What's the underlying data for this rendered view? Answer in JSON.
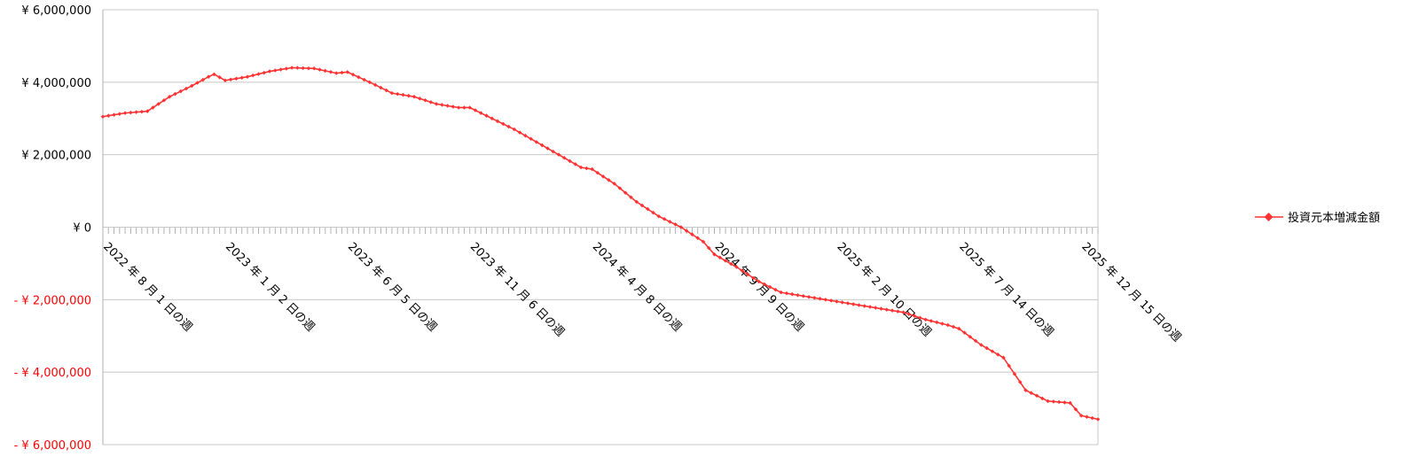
{
  "colors": {
    "series": "#ff3333",
    "negative_label": "#ff0000",
    "positive_label": "#000000",
    "grid": "#c8c8c8",
    "axis": "#b0b0b0"
  },
  "chart_data": {
    "type": "line",
    "title": "",
    "xlabel": "",
    "ylabel": "",
    "ylim": [
      -6000000,
      6000000
    ],
    "yticks": [
      6000000,
      4000000,
      2000000,
      0,
      -2000000,
      -4000000,
      -6000000
    ],
    "ytick_labels": [
      "¥ 6,000,000",
      "¥ 4,000,000",
      "¥ 2,000,000",
      "¥ 0",
      "- ¥ 2,000,000",
      "- ¥ 4,000,000",
      "- ¥ 6,000,000"
    ],
    "xrange": [
      "2022-08-01",
      "2026-01-05"
    ],
    "xtick_dates": [
      "2022-08-01",
      "2023-01-02",
      "2023-06-05",
      "2023-11-06",
      "2024-04-08",
      "2024-09-09",
      "2025-02-10",
      "2025-07-14",
      "2025-12-15"
    ],
    "xtick_labels": [
      "2022 年 8 月 1 日の週",
      "2023 年 1 月 2 日の週",
      "2023 年 6 月 5 日の週",
      "2023 年 11 月 6 日の週",
      "2024 年 4 月 8 日の週",
      "2024 年 9 月 9 日の週",
      "2025 年 2 月 10 日の週",
      "2025 年 7 月 14 日の週",
      "2025 年 12 月 15 日の週"
    ],
    "grid": true,
    "legend": "right",
    "series": [
      {
        "name": "投資元本増減金額",
        "x": [
          "2022-08-01",
          "2022-08-29",
          "2022-09-26",
          "2022-10-24",
          "2022-11-21",
          "2022-12-12",
          "2022-12-19",
          "2023-01-02",
          "2023-01-30",
          "2023-02-27",
          "2023-03-27",
          "2023-04-24",
          "2023-05-22",
          "2023-06-05",
          "2023-07-03",
          "2023-07-31",
          "2023-08-28",
          "2023-09-25",
          "2023-10-23",
          "2023-11-06",
          "2023-12-04",
          "2024-01-01",
          "2024-01-29",
          "2024-02-26",
          "2024-03-25",
          "2024-04-08",
          "2024-05-06",
          "2024-06-03",
          "2024-07-01",
          "2024-07-29",
          "2024-08-26",
          "2024-09-09",
          "2024-10-07",
          "2024-11-04",
          "2024-12-02",
          "2024-12-30",
          "2025-01-27",
          "2025-02-10",
          "2025-03-10",
          "2025-04-07",
          "2025-05-05",
          "2025-06-02",
          "2025-06-30",
          "2025-07-14",
          "2025-08-11",
          "2025-09-08",
          "2025-10-06",
          "2025-11-03",
          "2025-12-01",
          "2025-12-15",
          "2026-01-05"
        ],
        "values": [
          3050000,
          3150000,
          3200000,
          3600000,
          3900000,
          4150000,
          4220000,
          4050000,
          4150000,
          4300000,
          4400000,
          4380000,
          4250000,
          4280000,
          4000000,
          3700000,
          3600000,
          3400000,
          3300000,
          3300000,
          3000000,
          2700000,
          2350000,
          2000000,
          1650000,
          1600000,
          1200000,
          700000,
          300000,
          0,
          -400000,
          -750000,
          -1100000,
          -1500000,
          -1800000,
          -1900000,
          -2000000,
          -2050000,
          -2150000,
          -2250000,
          -2350000,
          -2550000,
          -2700000,
          -2800000,
          -3250000,
          -3600000,
          -4500000,
          -4800000,
          -4850000,
          -5200000,
          -5300000
        ]
      }
    ]
  }
}
